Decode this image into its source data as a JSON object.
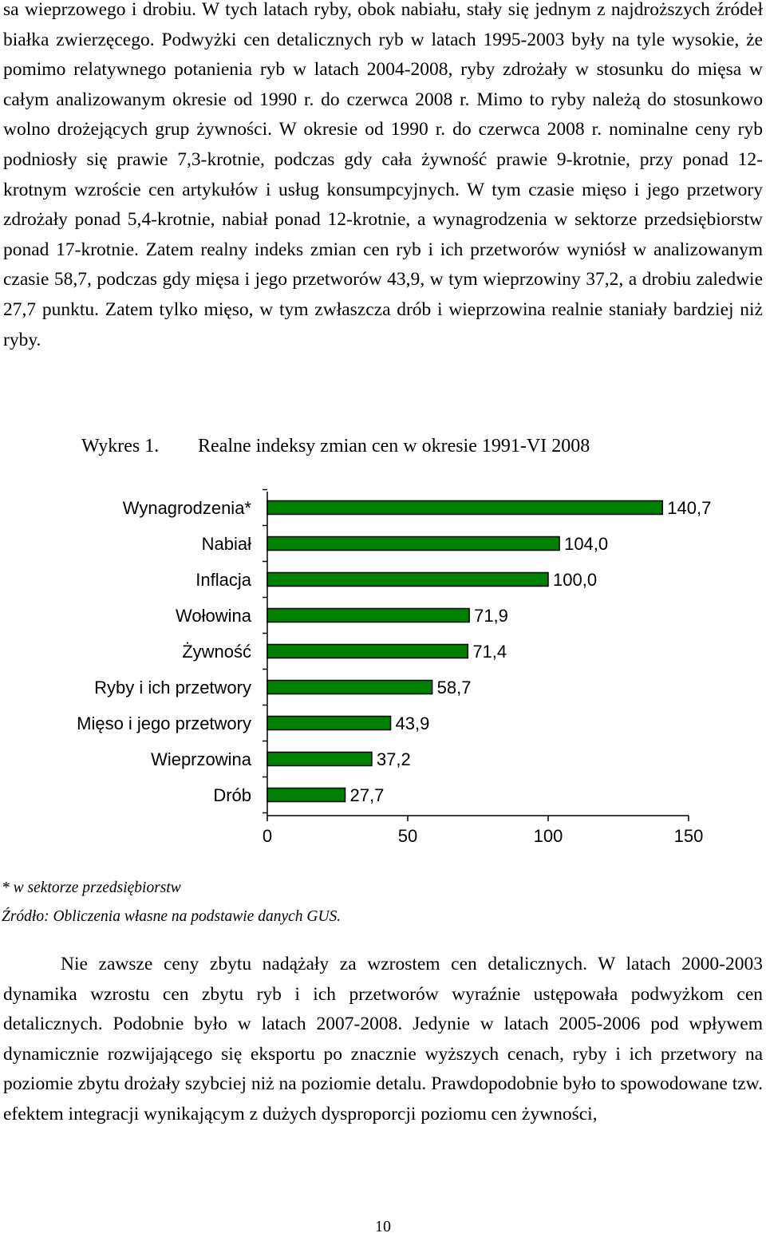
{
  "paragraph_top": "sa wieprzowego i drobiu. W tych latach ryby, obok nabiału, stały się jednym z najdroższych źródeł białka zwierzęcego. Podwyżki cen detalicznych ryb w latach 1995-2003 były na tyle wysokie, że pomimo relatywnego potanienia ryb w latach 2004-2008, ryby zdrożały w stosunku do mięsa w całym analizowanym okresie od 1990 r. do czerwca 2008 r. Mimo to ryby należą do stosunkowo wolno drożejących grup żywności. W okresie od 1990 r. do czerwca 2008 r. nominalne ceny ryb podniosły się prawie 7,3-krotnie, podczas gdy cała żywność prawie 9-krotnie, przy ponad 12-krotnym wzroście cen artykułów i usług konsumpcyjnych. W tym czasie mięso i jego przetwory zdrożały ponad 5,4-krotnie, nabiał ponad 12-krotnie, a wynagrodzenia w sektorze przedsiębiorstw ponad 17-krotnie. Zatem realny indeks zmian cen ryb i ich przetworów wyniósł w analizowanym czasie 58,7, podczas gdy mięsa i jego przetworów 43,9, w tym wieprzowiny 37,2, a drobiu zaledwie 27,7 punktu. Zatem tylko mięso, w tym zwłaszcza drób i wieprzowina realnie staniały bardziej niż ryby.",
  "chart_caption": {
    "number": "Wykres 1.",
    "title": "Realne indeksy zmian cen w okresie 1991-VI 2008"
  },
  "chart_data": {
    "type": "bar",
    "orientation": "horizontal",
    "categories": [
      "Wynagrodzenia*",
      "Nabiał",
      "Inflacja",
      "Wołowina",
      "Żywność",
      "Ryby i ich przetwory",
      "Mięso i jego przetwory",
      "Wieprzowina",
      "Drób"
    ],
    "values": [
      140.7,
      104.0,
      100.0,
      71.9,
      71.4,
      58.7,
      43.9,
      37.2,
      27.7
    ],
    "value_labels": [
      "140,7",
      "104,0",
      "100,0",
      "71,9",
      "71,4",
      "58,7",
      "43,9",
      "37,2",
      "27,7"
    ],
    "xlim": [
      0,
      150
    ],
    "xticks": [
      "0",
      "50",
      "100",
      "150"
    ],
    "bar_color": "#008000",
    "grid": false,
    "legend": "none"
  },
  "notes": {
    "footnote": "* w sektorze przedsiębiorstw",
    "source": "Źródło: Obliczenia własne na podstawie danych GUS."
  },
  "paragraph_bottom": "Nie zawsze ceny zbytu nadążały za wzrostem cen detalicznych. W latach 2000-2003 dynamika wzrostu cen zbytu ryb i ich przetworów wyraźnie ustępowała podwyżkom cen detalicznych. Podobnie było w latach 2007-2008. Jedynie w latach 2005-2006 pod wpływem dynamicznie rozwijającego się eksportu po znacznie wyższych cenach, ryby i ich przetwory na poziomie zbytu drożały szybciej niż na poziomie detalu. Prawdopodobnie było to spowodowane tzw. efektem integracji wynikającym z dużych dysproporcji poziomu cen żywności,",
  "page_number": "10"
}
